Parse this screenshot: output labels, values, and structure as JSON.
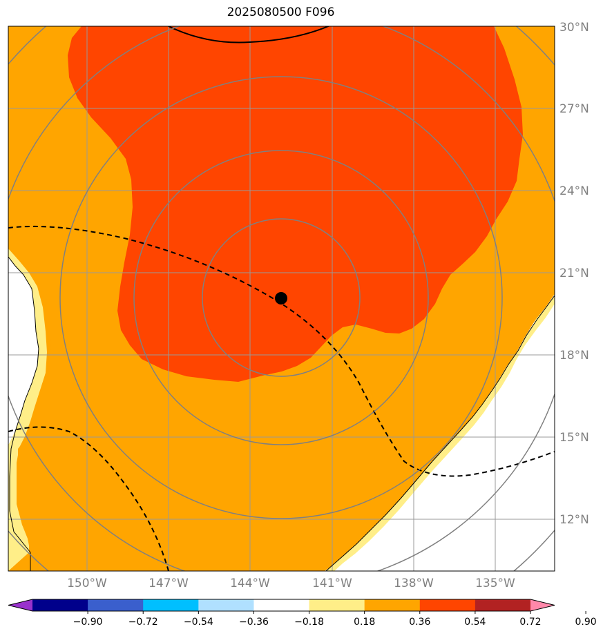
{
  "title": "2025080500 F096",
  "map": {
    "lon_range": [
      -153,
      -133
    ],
    "lat_range": [
      10,
      30
    ],
    "center": {
      "lon": -142.6,
      "lat": 20.0
    },
    "lat_ticks": [
      "12°N",
      "15°N",
      "18°N",
      "21°N",
      "24°N",
      "27°N",
      "30°N"
    ],
    "lat_tick_values": [
      12,
      15,
      18,
      21,
      24,
      27,
      30
    ],
    "lon_ticks": [
      "150°W",
      "147°W",
      "144°W",
      "141°W",
      "138°W",
      "135°W"
    ],
    "lon_tick_values": [
      -150,
      -147,
      -144,
      -141,
      -138,
      -135
    ],
    "range_rings_deg": [
      3,
      6,
      8.5,
      11
    ],
    "colors": {
      "fill_0_18_0_36": "#ffee88",
      "fill_0_36_0_54": "#ffa500",
      "fill_0_54_0_72": "#ff4500",
      "grid": "#999999",
      "rings": "#808080",
      "center_marker": "#000000"
    }
  },
  "colorbar": {
    "labels": [
      "−0.90",
      "−0.72",
      "−0.54",
      "−0.36",
      "−0.18",
      "0.18",
      "0.36",
      "0.54",
      "0.72",
      "0.90"
    ],
    "colors": [
      "#9932cc",
      "#00008b",
      "#3a5fcd",
      "#00bfff",
      "#b0e0ff",
      "#ffffff",
      "#ffee88",
      "#ffa500",
      "#ff4500",
      "#b22222",
      "#ff88aa"
    ]
  }
}
